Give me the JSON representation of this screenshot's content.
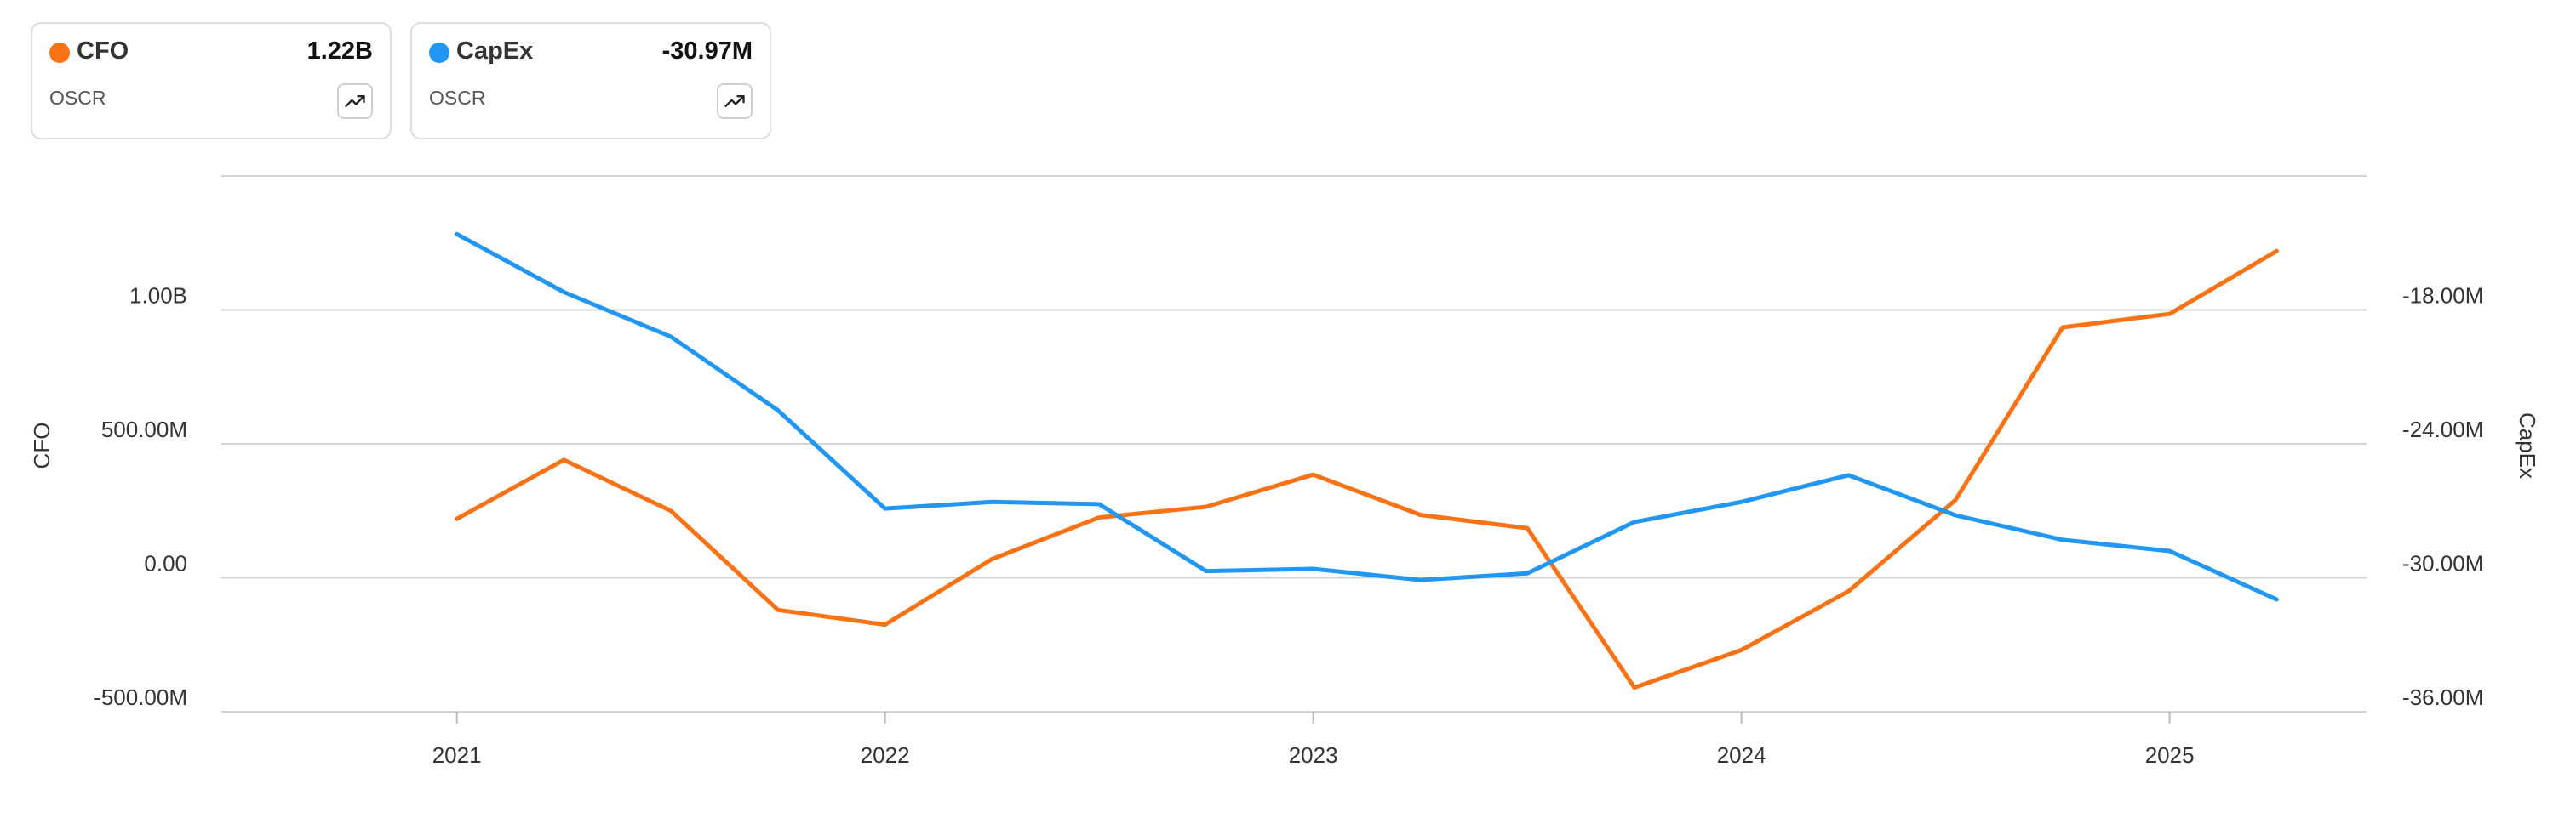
{
  "legend": [
    {
      "name": "CFO",
      "value": "1.22B",
      "ticker": "OSCR",
      "color": "#f97316",
      "icon": "trending-up-icon"
    },
    {
      "name": "CapEx",
      "value": "-30.97M",
      "ticker": "OSCR",
      "color": "#2196f3",
      "icon": "trending-up-icon"
    }
  ],
  "chart_data": {
    "type": "line",
    "x": [
      2021.0,
      2021.25,
      2021.5,
      2021.75,
      2022.0,
      2022.25,
      2022.5,
      2022.75,
      2023.0,
      2023.25,
      2023.5,
      2023.75,
      2024.0,
      2024.25,
      2024.5,
      2024.75,
      2025.0,
      2025.25
    ],
    "xlim": [
      2020.45,
      2025.46
    ],
    "x_ticks": [
      2021,
      2022,
      2023,
      2024,
      2025
    ],
    "x_tick_labels": [
      "2021",
      "2022",
      "2023",
      "2024",
      "2025"
    ],
    "grid": "horizontal",
    "series": [
      {
        "name": "CFO",
        "axis": "left",
        "color": "#f97316",
        "values": [
          220000000,
          440000000,
          250000000,
          -120000000,
          -175000000,
          70000000,
          225000000,
          265000000,
          385000000,
          235000000,
          185000000,
          -410000000,
          -270000000,
          -50000000,
          290000000,
          935000000,
          985000000,
          1220000000
        ]
      },
      {
        "name": "CapEx",
        "axis": "right",
        "color": "#2196f3",
        "values": [
          -14.6,
          -17.2,
          -19.2,
          -22.5,
          -26.9,
          -26.6,
          -26.7,
          -29.7,
          -29.6,
          -30.1,
          -29.8,
          -27.5,
          -26.6,
          -25.4,
          -27.2,
          -28.3,
          -28.8,
          -30.97
        ]
      }
    ],
    "y_left": {
      "label": "CFO",
      "lim": [
        -500000000,
        1500000000
      ],
      "ticks": [
        -500000000,
        0,
        500000000,
        1000000000
      ],
      "tick_labels": [
        "-500.00M",
        "0.00",
        "500.00M",
        "1.00B"
      ]
    },
    "y_right": {
      "label": "CapEx",
      "lim": [
        -36,
        -12
      ],
      "ticks": [
        -36,
        -30,
        -24,
        -18
      ],
      "tick_labels": [
        "-36.00M",
        "-30.00M",
        "-24.00M",
        "-18.00M"
      ]
    }
  }
}
